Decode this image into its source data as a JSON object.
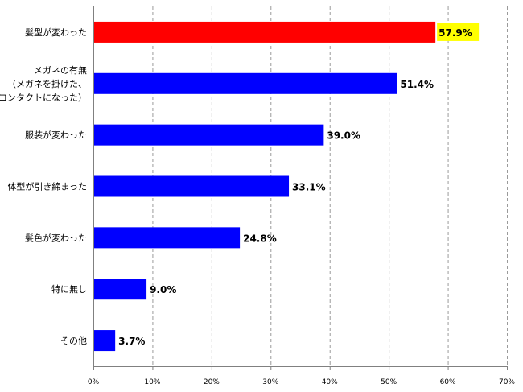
{
  "chart_data": {
    "type": "bar",
    "orientation": "horizontal",
    "categories": [
      [
        "髪型が変わった"
      ],
      [
        "メガネの有無",
        "（メガネを掛けた、",
        "コンタクトになった）"
      ],
      [
        "服装が変わった"
      ],
      [
        "体型が引き締まった"
      ],
      [
        "髪色が変わった"
      ],
      [
        "特に無し"
      ],
      [
        "その他"
      ]
    ],
    "values": [
      57.9,
      51.4,
      39.0,
      33.1,
      24.8,
      9.0,
      3.7
    ],
    "data_labels": [
      "57.9%",
      "51.4%",
      "39.0%",
      "33.1%",
      "24.8%",
      "9.0%",
      "3.7%"
    ],
    "bar_colors": [
      "#ff0000",
      "#0000ff",
      "#0000ff",
      "#0000ff",
      "#0000ff",
      "#0000ff",
      "#0000ff"
    ],
    "highlight_label_background": "#ffff00",
    "xlim": [
      0,
      70
    ],
    "x_ticks": [
      0,
      10,
      20,
      30,
      40,
      50,
      60,
      70
    ],
    "x_tick_labels": [
      "0%",
      "10%",
      "20%",
      "30%",
      "40%",
      "50%",
      "60%",
      "70%"
    ],
    "gridlines": "vertical dashed",
    "legend": "none"
  }
}
